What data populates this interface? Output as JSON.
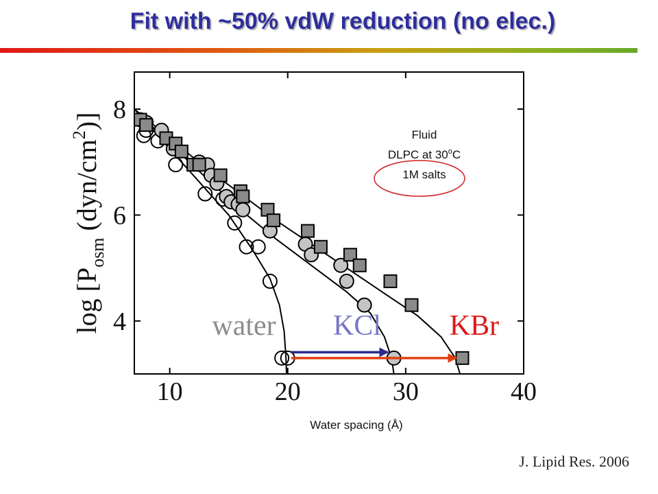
{
  "title": "Fit with ~50% vdW reduction (no elec.)",
  "citation": "J. Lipid Res. 2006",
  "annotation": {
    "line1": "Fluid",
    "line2_prefix": "DLPC at 30",
    "line2_sup": "o",
    "line2_suffix": "C",
    "line3": "1M salts"
  },
  "colors": {
    "title": "#2e2e9c",
    "water": "#8c8c8c",
    "kcl": "#7777c8",
    "kbr": "#e01818",
    "arrow_kcl": "#2a2a90",
    "arrow_kbr": "#e04010",
    "ellipse": "#d02020"
  },
  "chart_data": {
    "type": "scatter",
    "xlabel": "Water spacing (Å)",
    "ylabel": {
      "pre": "log [P",
      "sub": "osm",
      "mid": " (dyn/cm",
      "sup": "2",
      "post": ")]"
    },
    "xlim": [
      7,
      40
    ],
    "ylim": [
      3,
      8.7
    ],
    "x_ticks": [
      10,
      20,
      30,
      40
    ],
    "y_ticks": [
      4,
      6,
      8
    ],
    "grid": false,
    "series": [
      {
        "name": "water",
        "marker": "open-circle",
        "points": [
          [
            8,
            7.6
          ],
          [
            7.8,
            7.5
          ],
          [
            9,
            7.4
          ],
          [
            10.5,
            6.95
          ],
          [
            13,
            6.4
          ],
          [
            14.5,
            6.3
          ],
          [
            15.5,
            5.85
          ],
          [
            16.5,
            5.4
          ],
          [
            17.5,
            5.4
          ],
          [
            18.5,
            4.75
          ],
          [
            19.5,
            3.3
          ],
          [
            20,
            3.3
          ]
        ],
        "fit": [
          [
            7,
            8
          ],
          [
            10,
            7.25
          ],
          [
            13,
            6.5
          ],
          [
            15,
            6
          ],
          [
            17,
            5.35
          ],
          [
            18.5,
            4.8
          ],
          [
            19.3,
            4.3
          ],
          [
            19.7,
            3.8
          ],
          [
            19.85,
            3.3
          ],
          [
            19.9,
            3
          ]
        ]
      },
      {
        "name": "KCl",
        "marker": "gray-circle",
        "points": [
          [
            7.5,
            7.8
          ],
          [
            8,
            7.75
          ],
          [
            9.3,
            7.6
          ],
          [
            10.3,
            7.25
          ],
          [
            12.5,
            7
          ],
          [
            13.2,
            6.95
          ],
          [
            13.5,
            6.75
          ],
          [
            14,
            6.6
          ],
          [
            14.8,
            6.35
          ],
          [
            15.2,
            6.25
          ],
          [
            15.8,
            6.2
          ],
          [
            16.2,
            6.1
          ],
          [
            18.5,
            5.7
          ],
          [
            21.5,
            5.45
          ],
          [
            22,
            5.25
          ],
          [
            24.5,
            5.05
          ],
          [
            25,
            4.75
          ],
          [
            26.5,
            4.3
          ],
          [
            29,
            3.3
          ]
        ],
        "fit": [
          [
            7,
            8
          ],
          [
            10,
            7.35
          ],
          [
            13,
            6.72
          ],
          [
            16,
            6.1
          ],
          [
            19,
            5.55
          ],
          [
            22,
            5.05
          ],
          [
            25,
            4.55
          ],
          [
            27,
            4.15
          ],
          [
            28.2,
            3.7
          ],
          [
            28.8,
            3.3
          ],
          [
            29,
            3
          ]
        ]
      },
      {
        "name": "KBr",
        "marker": "gray-square",
        "points": [
          [
            7.5,
            7.8
          ],
          [
            8,
            7.7
          ],
          [
            9.7,
            7.45
          ],
          [
            10.5,
            7.35
          ],
          [
            11,
            7.2
          ],
          [
            12,
            6.95
          ],
          [
            12.5,
            6.95
          ],
          [
            14.3,
            6.75
          ],
          [
            16,
            6.45
          ],
          [
            16.2,
            6.35
          ],
          [
            18.3,
            6.1
          ],
          [
            18.8,
            5.9
          ],
          [
            21.7,
            5.7
          ],
          [
            22.8,
            5.4
          ],
          [
            25.3,
            5.25
          ],
          [
            26.1,
            5.05
          ],
          [
            28.7,
            4.75
          ],
          [
            30.5,
            4.3
          ],
          [
            34.8,
            3.3
          ]
        ],
        "fit": [
          [
            7,
            8
          ],
          [
            10,
            7.45
          ],
          [
            13,
            6.9
          ],
          [
            16,
            6.4
          ],
          [
            19,
            5.9
          ],
          [
            22,
            5.45
          ],
          [
            25,
            5
          ],
          [
            28,
            4.55
          ],
          [
            31,
            4.1
          ],
          [
            33,
            3.7
          ],
          [
            34.2,
            3.3
          ],
          [
            34.6,
            3
          ]
        ]
      }
    ],
    "labels": [
      {
        "text": "water",
        "series": "water"
      },
      {
        "text": "KCl",
        "series": "KCl"
      },
      {
        "text": "KBr",
        "series": "KBr"
      }
    ],
    "arrows": [
      {
        "series": "KCl",
        "from_x": 20.3,
        "to_x": 28.5,
        "y": 3.41
      },
      {
        "series": "KBr",
        "from_x": 20.3,
        "to_x": 34.3,
        "y": 3.3
      }
    ]
  }
}
